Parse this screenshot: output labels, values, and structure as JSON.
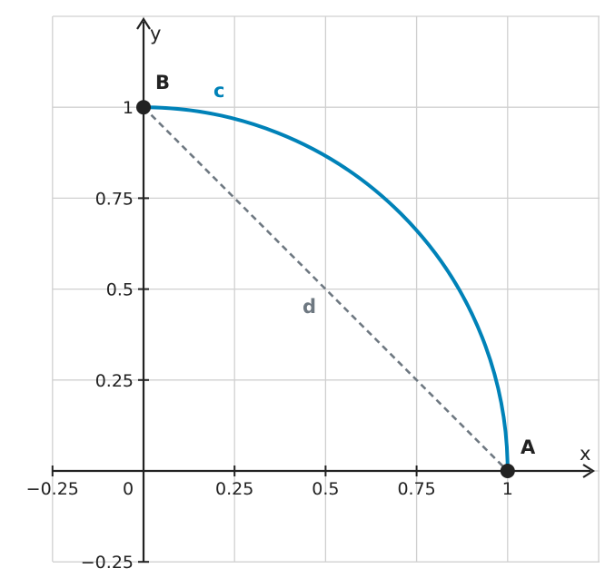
{
  "x_axis": {
    "name": "x",
    "range": [
      -0.25,
      1.25
    ],
    "ticks": [
      {
        "value": -0.25,
        "label": "−0.25"
      },
      {
        "value": 0,
        "label": "0"
      },
      {
        "value": 0.25,
        "label": "0.25"
      },
      {
        "value": 0.5,
        "label": "0.5"
      },
      {
        "value": 0.75,
        "label": "0.75"
      },
      {
        "value": 1,
        "label": "1"
      }
    ]
  },
  "y_axis": {
    "name": "y",
    "range": [
      -0.25,
      1.25
    ],
    "ticks": [
      {
        "value": -0.25,
        "label": "−0.25"
      },
      {
        "value": 0.25,
        "label": "0.25"
      },
      {
        "value": 0.5,
        "label": "0.5"
      },
      {
        "value": 0.75,
        "label": "0.75"
      },
      {
        "value": 1,
        "label": "1"
      }
    ]
  },
  "grid": true,
  "points": [
    {
      "name": "A",
      "x": 1,
      "y": 0
    },
    {
      "name": "B",
      "x": 0,
      "y": 1
    }
  ],
  "arc": {
    "name": "c",
    "center": [
      0,
      0
    ],
    "radius": 1,
    "from_deg": 0,
    "to_deg": 90,
    "color": "#0082b8"
  },
  "segment": {
    "name": "d",
    "from": "B",
    "to": "A",
    "style": "dashed",
    "color": "#6e7881"
  },
  "colors": {
    "axis": "#222222",
    "grid": "#d0d0d0",
    "point": "#222222"
  }
}
